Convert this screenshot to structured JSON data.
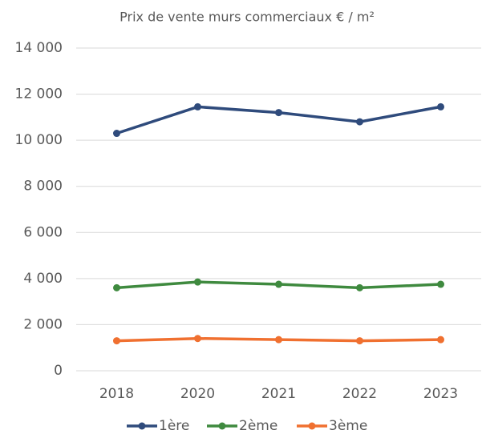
{
  "chart_data": {
    "type": "line",
    "title": "Prix de vente murs commerciaux  € / m²",
    "categories": [
      "2018",
      "2020",
      "2021",
      "2022",
      "2023"
    ],
    "series": [
      {
        "name": "1ère",
        "color": "#2f4b7c",
        "values": [
          10300,
          11450,
          11200,
          10800,
          11450
        ]
      },
      {
        "name": "2ème",
        "color": "#3f8a3f",
        "values": [
          3600,
          3850,
          3750,
          3600,
          3750
        ]
      },
      {
        "name": "3ème",
        "color": "#f07030",
        "values": [
          1300,
          1400,
          1350,
          1300,
          1350
        ]
      }
    ],
    "ylim": [
      0,
      14000
    ],
    "yticks": [
      0,
      {
        "value": 2000,
        "label": "2 000"
      },
      {
        "value": 4000,
        "label": "4 000"
      },
      {
        "value": 6000,
        "label": "6 000"
      },
      {
        "value": 8000,
        "label": "8 000"
      },
      {
        "value": 10000,
        "label": "10 000"
      },
      {
        "value": 12000,
        "label": "12 000"
      },
      {
        "value": 14000,
        "label": "14 000"
      }
    ],
    "grid": true,
    "legend": "bottom"
  }
}
